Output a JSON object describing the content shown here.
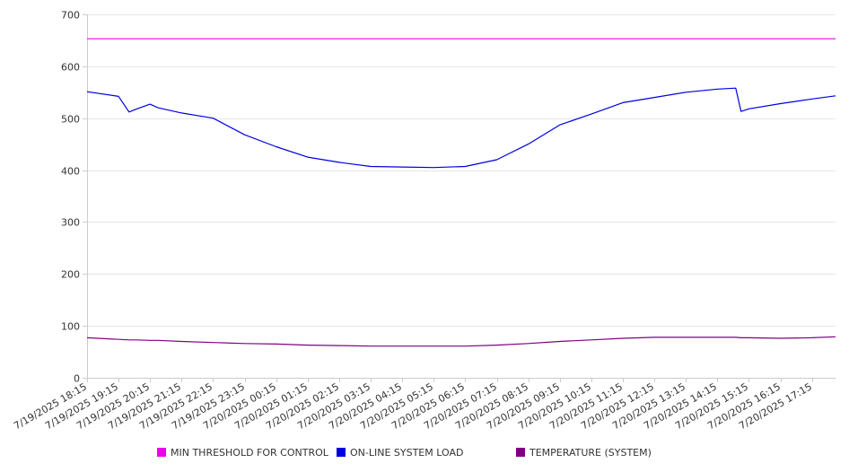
{
  "chart_data": {
    "type": "line",
    "title": "",
    "xlabel": "",
    "ylabel": "",
    "ylim": [
      0,
      700
    ],
    "yticks": [
      0,
      100,
      200,
      300,
      400,
      500,
      600,
      700
    ],
    "grid": true,
    "legend_position": "bottom",
    "xticks": [
      "7/19/2025 18:15",
      "7/19/2025 19:15",
      "7/19/2025 20:15",
      "7/19/2025 21:15",
      "7/19/2025 22:15",
      "7/19/2025 23:15",
      "7/20/2025 00:15",
      "7/20/2025 01:15",
      "7/20/2025 02:15",
      "7/20/2025 03:15",
      "7/20/2025 04:15",
      "7/20/2025 05:15",
      "7/20/2025 06:15",
      "7/20/2025 07:15",
      "7/20/2025 08:15",
      "7/20/2025 09:15",
      "7/20/2025 10:15",
      "7/20/2025 11:15",
      "7/20/2025 12:15",
      "7/20/2025 13:15",
      "7/20/2025 14:15",
      "7/20/2025 15:15",
      "7/20/2025 16:15",
      "7/20/2025 17:15"
    ],
    "x": [
      "7/19/2025 18:15",
      "7/19/2025 19:15",
      "7/19/2025 19:35",
      "7/19/2025 19:50",
      "7/19/2025 20:15",
      "7/19/2025 20:30",
      "7/19/2025 21:15",
      "7/19/2025 22:15",
      "7/19/2025 23:15",
      "7/20/2025 00:15",
      "7/20/2025 01:15",
      "7/20/2025 02:15",
      "7/20/2025 03:15",
      "7/20/2025 04:15",
      "7/20/2025 05:15",
      "7/20/2025 06:15",
      "7/20/2025 07:15",
      "7/20/2025 08:15",
      "7/20/2025 09:15",
      "7/20/2025 10:15",
      "7/20/2025 11:15",
      "7/20/2025 12:15",
      "7/20/2025 13:15",
      "7/20/2025 14:15",
      "7/20/2025 14:50",
      "7/20/2025 15:00",
      "7/20/2025 15:15",
      "7/20/2025 16:15",
      "7/20/2025 17:15",
      "7/20/2025 18:00"
    ],
    "series": [
      {
        "name": "MIN THRESHOLD FOR CONTROL",
        "color": "#ee00ee",
        "values": [
          653,
          653,
          653,
          653,
          653,
          653,
          653,
          653,
          653,
          653,
          653,
          653,
          653,
          653,
          653,
          653,
          653,
          653,
          653,
          653,
          653,
          653,
          653,
          653,
          653,
          653,
          653,
          653,
          653,
          653
        ]
      },
      {
        "name": "ON-LINE SYSTEM LOAD",
        "color": "#0000dd",
        "values": [
          551,
          542,
          512,
          518,
          527,
          520,
          510,
          500,
          468,
          445,
          425,
          415,
          407,
          406,
          405,
          407,
          420,
          450,
          487,
          508,
          530,
          540,
          550,
          556,
          558,
          513,
          518,
          528,
          537,
          543
        ]
      },
      {
        "name": "TEMPERATURE (SYSTEM)",
        "color": "#800080",
        "values": [
          77,
          74,
          73,
          73,
          72,
          72,
          70,
          68,
          66,
          65,
          63,
          62,
          61,
          61,
          61,
          61,
          63,
          66,
          70,
          73,
          76,
          78,
          78,
          78,
          78,
          77,
          77,
          76,
          77,
          79
        ]
      }
    ]
  }
}
